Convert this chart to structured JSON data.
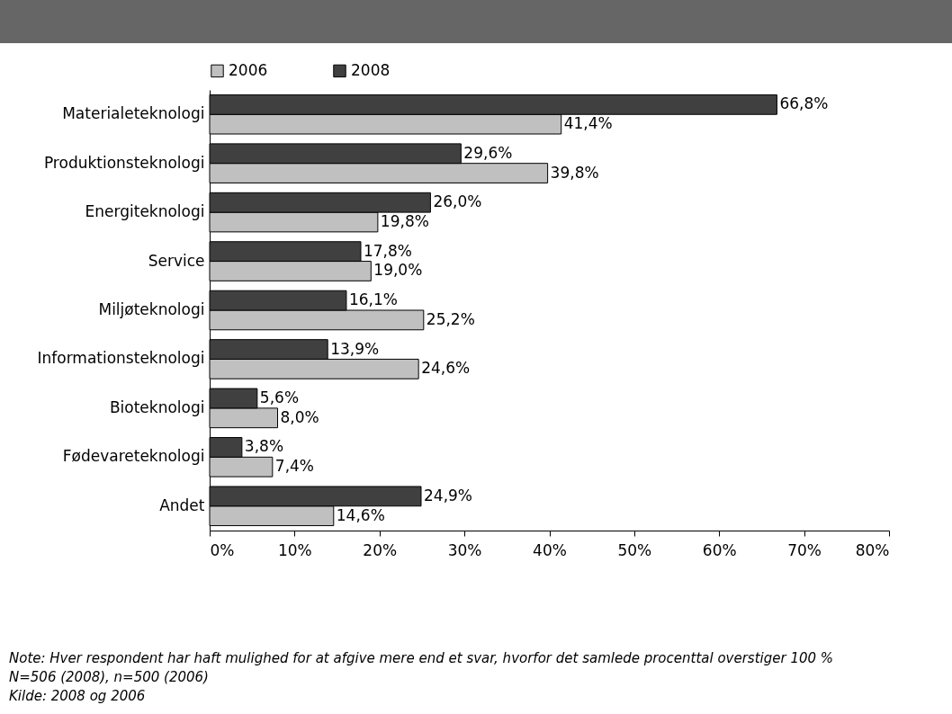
{
  "chart_data": {
    "type": "bar",
    "orientation": "horizontal",
    "categories": [
      "Materialeteknologi",
      "Produktionsteknologi",
      "Energiteknologi",
      "Service",
      "Miljøteknologi",
      "Informationsteknologi",
      "Bioteknologi",
      "Fødevareteknologi",
      "Andet"
    ],
    "series": [
      {
        "name": "2006",
        "color": "#c0c0c0",
        "values": [
          41.4,
          39.8,
          19.8,
          19.0,
          25.2,
          24.6,
          8.0,
          7.4,
          14.6
        ],
        "value_labels": [
          "41,4%",
          "39,8%",
          "19,8%",
          "19,0%",
          "25,2%",
          "24,6%",
          "8,0%",
          "7,4%",
          "14,6%"
        ]
      },
      {
        "name": "2008",
        "color": "#404040",
        "values": [
          66.8,
          29.6,
          26.0,
          17.8,
          16.1,
          13.9,
          5.6,
          3.8,
          24.9
        ],
        "value_labels": [
          "66,8%",
          "29,6%",
          "26,0%",
          "17,8%",
          "16,1%",
          "13,9%",
          "5,6%",
          "3,8%",
          "24,9%"
        ]
      }
    ],
    "xlim": [
      0,
      80
    ],
    "xticks": [
      {
        "value": 0,
        "label": "0%"
      },
      {
        "value": 10,
        "label": "10%"
      },
      {
        "value": 20,
        "label": "20%"
      },
      {
        "value": 30,
        "label": "30%"
      },
      {
        "value": 40,
        "label": "40%"
      },
      {
        "value": 50,
        "label": "50%"
      },
      {
        "value": 60,
        "label": "60%"
      },
      {
        "value": 70,
        "label": "70%"
      },
      {
        "value": 80,
        "label": "80%"
      }
    ],
    "legend": "top",
    "grid": false,
    "annotations": [
      "Note: Hver respondent har haft mulighed for at afgive mere end et svar, hvorfor det samlede procenttal overstiger 100 %",
      "N=506 (2008), n=500 (2006)",
      "Kilde: 2008 og 2006"
    ]
  }
}
